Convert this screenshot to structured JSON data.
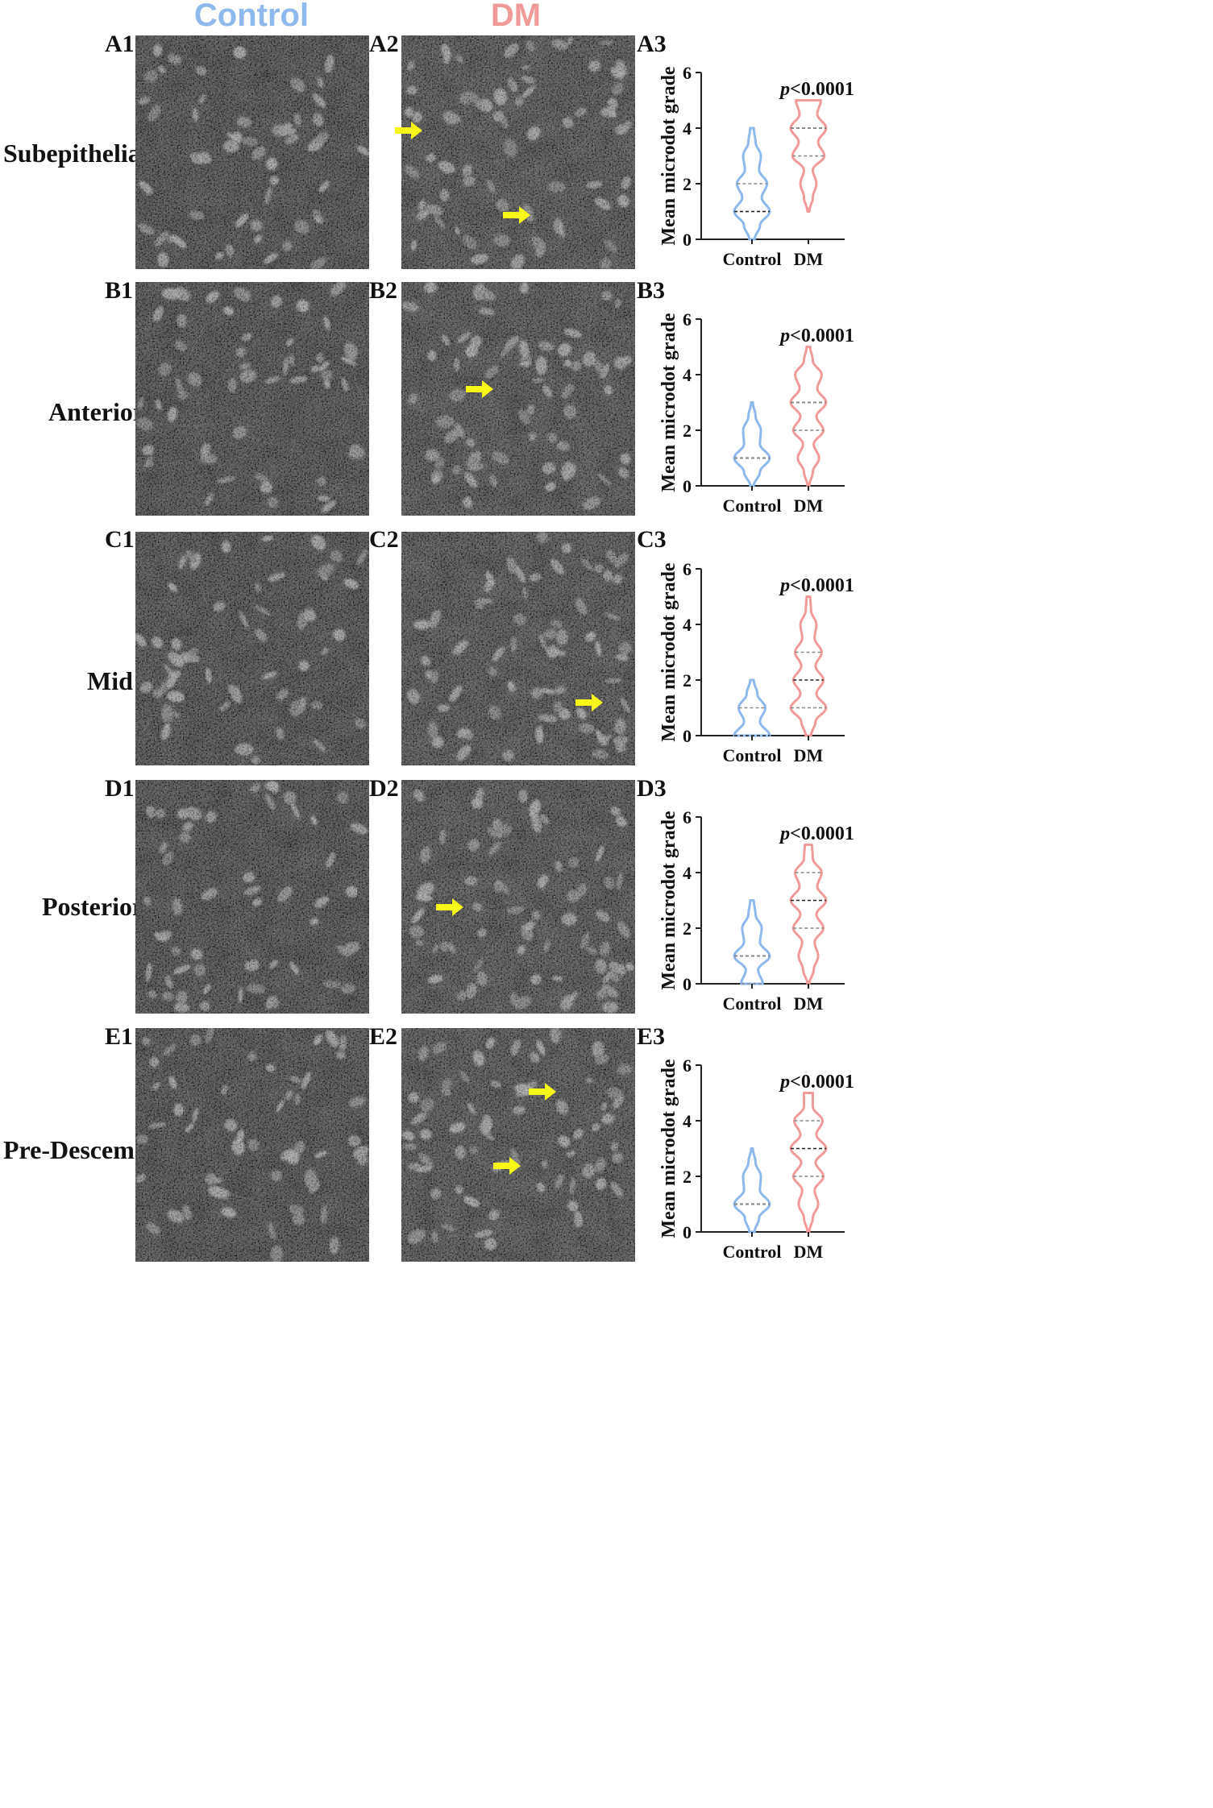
{
  "columns": {
    "control": {
      "label": "Control",
      "color": "#8fb8ec"
    },
    "dm": {
      "label": "DM",
      "color": "#f19a9a"
    }
  },
  "arrow_color": "#f7f71a",
  "rows": [
    {
      "name": "Subepithelial",
      "panels": [
        "A1",
        "A2",
        "A3"
      ]
    },
    {
      "name": "Anterior",
      "panels": [
        "B1",
        "B2",
        "B3"
      ]
    },
    {
      "name": "Mid",
      "panels": [
        "C1",
        "C2",
        "C3"
      ]
    },
    {
      "name": "Posterior",
      "panels": [
        "D1",
        "D2",
        "D3"
      ]
    },
    {
      "name": "Pre-Descemet",
      "panels": [
        "E1",
        "E2",
        "E3"
      ]
    }
  ],
  "chart_data": [
    {
      "type": "violin",
      "panel": "A3",
      "ylabel": "Mean microdot grade",
      "ylim": [
        0,
        6
      ],
      "yticks": [
        "0",
        "2",
        "4",
        "6"
      ],
      "categories": [
        "Control",
        "DM"
      ],
      "p_value_prefix": "p",
      "p_value_rest": "<0.0001",
      "series": [
        {
          "name": "Control",
          "min": 0,
          "max": 4,
          "quartiles": [
            1,
            1,
            2
          ],
          "density": [
            [
              0,
              0.15
            ],
            [
              0.5,
              0.45
            ],
            [
              1,
              1.0
            ],
            [
              1.5,
              0.55
            ],
            [
              2,
              0.85
            ],
            [
              2.5,
              0.4
            ],
            [
              3,
              0.5
            ],
            [
              3.5,
              0.2
            ],
            [
              4,
              0.1
            ]
          ]
        },
        {
          "name": "DM",
          "min": 1,
          "max": 5,
          "quartiles": [
            3,
            4,
            4
          ],
          "density": [
            [
              1,
              0.05
            ],
            [
              1.5,
              0.25
            ],
            [
              2,
              0.45
            ],
            [
              2.5,
              0.25
            ],
            [
              3,
              0.9
            ],
            [
              3.5,
              0.55
            ],
            [
              4,
              1.0
            ],
            [
              4.5,
              0.5
            ],
            [
              5,
              0.7
            ]
          ]
        }
      ]
    },
    {
      "type": "violin",
      "panel": "B3",
      "ylabel": "Mean microdot grade",
      "ylim": [
        0,
        6
      ],
      "yticks": [
        "0",
        "2",
        "4",
        "6"
      ],
      "categories": [
        "Control",
        "DM"
      ],
      "p_value_prefix": "p",
      "p_value_rest": "<0.0001",
      "series": [
        {
          "name": "Control",
          "min": 0,
          "max": 3,
          "quartiles": [
            1,
            1,
            1
          ],
          "density": [
            [
              0,
              0.1
            ],
            [
              0.5,
              0.45
            ],
            [
              1,
              1.0
            ],
            [
              1.5,
              0.45
            ],
            [
              2,
              0.5
            ],
            [
              2.5,
              0.2
            ],
            [
              3,
              0.05
            ]
          ]
        },
        {
          "name": "DM",
          "min": 0,
          "max": 5,
          "quartiles": [
            2,
            3,
            3
          ],
          "density": [
            [
              0,
              0.05
            ],
            [
              0.5,
              0.25
            ],
            [
              1,
              0.6
            ],
            [
              1.5,
              0.3
            ],
            [
              2,
              0.85
            ],
            [
              2.5,
              0.45
            ],
            [
              3,
              1.0
            ],
            [
              3.5,
              0.5
            ],
            [
              4,
              0.75
            ],
            [
              4.5,
              0.25
            ],
            [
              5,
              0.1
            ]
          ]
        }
      ]
    },
    {
      "type": "violin",
      "panel": "C3",
      "ylabel": "Mean microdot grade",
      "ylim": [
        0,
        6
      ],
      "yticks": [
        "0",
        "2",
        "4",
        "6"
      ],
      "categories": [
        "Control",
        "DM"
      ],
      "p_value_prefix": "p",
      "p_value_rest": "<0.0001",
      "series": [
        {
          "name": "Control",
          "min": 0,
          "max": 2,
          "quartiles": [
            0,
            0,
            1
          ],
          "density": [
            [
              0,
              1.0
            ],
            [
              0.5,
              0.45
            ],
            [
              1,
              0.75
            ],
            [
              1.5,
              0.3
            ],
            [
              2,
              0.1
            ]
          ]
        },
        {
          "name": "DM",
          "min": 0,
          "max": 5,
          "quartiles": [
            1,
            2,
            3
          ],
          "density": [
            [
              0,
              0.15
            ],
            [
              0.5,
              0.4
            ],
            [
              1,
              1.0
            ],
            [
              1.5,
              0.45
            ],
            [
              2,
              0.85
            ],
            [
              2.5,
              0.4
            ],
            [
              3,
              0.75
            ],
            [
              3.5,
              0.35
            ],
            [
              4,
              0.45
            ],
            [
              4.5,
              0.15
            ],
            [
              5,
              0.1
            ]
          ]
        }
      ]
    },
    {
      "type": "violin",
      "panel": "D3",
      "ylabel": "Mean microdot grade",
      "ylim": [
        0,
        6
      ],
      "yticks": [
        "0",
        "2",
        "4",
        "6"
      ],
      "categories": [
        "Control",
        "DM"
      ],
      "p_value_prefix": "p",
      "p_value_rest": "<0.0001",
      "series": [
        {
          "name": "Control",
          "min": 0,
          "max": 3,
          "quartiles": [
            0,
            1,
            1
          ],
          "density": [
            [
              0,
              0.6
            ],
            [
              0.5,
              0.35
            ],
            [
              1,
              1.0
            ],
            [
              1.5,
              0.45
            ],
            [
              2,
              0.55
            ],
            [
              2.5,
              0.2
            ],
            [
              3,
              0.1
            ]
          ]
        },
        {
          "name": "DM",
          "min": 0,
          "max": 5,
          "quartiles": [
            2,
            3,
            4
          ],
          "density": [
            [
              0,
              0.05
            ],
            [
              0.5,
              0.3
            ],
            [
              1,
              0.55
            ],
            [
              1.5,
              0.35
            ],
            [
              2,
              0.85
            ],
            [
              2.5,
              0.45
            ],
            [
              3,
              1.0
            ],
            [
              3.5,
              0.5
            ],
            [
              4,
              0.75
            ],
            [
              4.5,
              0.25
            ],
            [
              5,
              0.2
            ]
          ]
        }
      ]
    },
    {
      "type": "violin",
      "panel": "E3",
      "ylabel": "Mean microdot grade",
      "ylim": [
        0,
        6
      ],
      "yticks": [
        "0",
        "2",
        "4",
        "6"
      ],
      "categories": [
        "Control",
        "DM"
      ],
      "p_value_prefix": "p",
      "p_value_rest": "<0.0001",
      "series": [
        {
          "name": "Control",
          "min": 0,
          "max": 3,
          "quartiles": [
            1,
            1,
            1
          ],
          "density": [
            [
              0,
              0.15
            ],
            [
              0.5,
              0.4
            ],
            [
              1,
              1.0
            ],
            [
              1.5,
              0.45
            ],
            [
              2,
              0.5
            ],
            [
              2.5,
              0.2
            ],
            [
              3,
              0.05
            ]
          ]
        },
        {
          "name": "DM",
          "min": 0,
          "max": 5,
          "quartiles": [
            2,
            3,
            4
          ],
          "density": [
            [
              0,
              0.05
            ],
            [
              0.5,
              0.25
            ],
            [
              1,
              0.55
            ],
            [
              1.5,
              0.35
            ],
            [
              2,
              0.85
            ],
            [
              2.5,
              0.4
            ],
            [
              3,
              1.0
            ],
            [
              3.5,
              0.45
            ],
            [
              4,
              0.8
            ],
            [
              4.5,
              0.25
            ],
            [
              5,
              0.25
            ]
          ]
        }
      ]
    }
  ]
}
